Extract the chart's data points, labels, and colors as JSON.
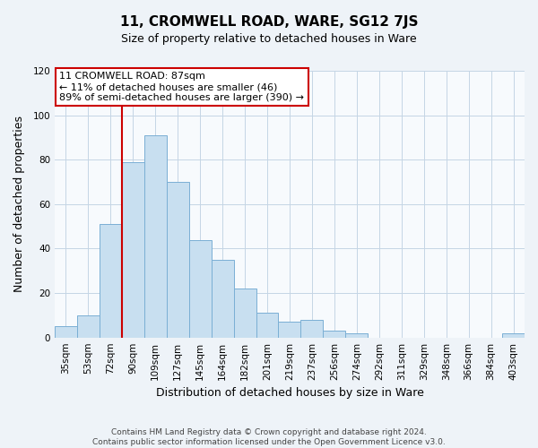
{
  "title": "11, CROMWELL ROAD, WARE, SG12 7JS",
  "subtitle": "Size of property relative to detached houses in Ware",
  "xlabel": "Distribution of detached houses by size in Ware",
  "ylabel": "Number of detached properties",
  "bar_labels": [
    "35sqm",
    "53sqm",
    "72sqm",
    "90sqm",
    "109sqm",
    "127sqm",
    "145sqm",
    "164sqm",
    "182sqm",
    "201sqm",
    "219sqm",
    "237sqm",
    "256sqm",
    "274sqm",
    "292sqm",
    "311sqm",
    "329sqm",
    "348sqm",
    "366sqm",
    "384sqm",
    "403sqm"
  ],
  "bar_values": [
    5,
    10,
    51,
    79,
    91,
    70,
    44,
    35,
    22,
    11,
    7,
    8,
    3,
    2,
    0,
    0,
    0,
    0,
    0,
    0,
    2
  ],
  "bar_color": "#c8dff0",
  "bar_edge_color": "#7aafd4",
  "vline_color": "#cc0000",
  "vline_x_index": 3,
  "annotation_line1": "11 CROMWELL ROAD: 87sqm",
  "annotation_line2": "← 11% of detached houses are smaller (46)",
  "annotation_line3": "89% of semi-detached houses are larger (390) →",
  "annotation_box_color": "#ffffff",
  "annotation_box_edge": "#cc0000",
  "ylim": [
    0,
    120
  ],
  "yticks": [
    0,
    20,
    40,
    60,
    80,
    100,
    120
  ],
  "footer_line1": "Contains HM Land Registry data © Crown copyright and database right 2024.",
  "footer_line2": "Contains public sector information licensed under the Open Government Licence v3.0.",
  "bg_color": "#eef3f8",
  "plot_bg_color": "#f7fafd",
  "grid_color": "#c5d5e5",
  "title_fontsize": 11,
  "subtitle_fontsize": 9,
  "annotation_fontsize": 8,
  "xlabel_fontsize": 9,
  "ylabel_fontsize": 9,
  "tick_fontsize": 7.5,
  "footer_fontsize": 6.5
}
